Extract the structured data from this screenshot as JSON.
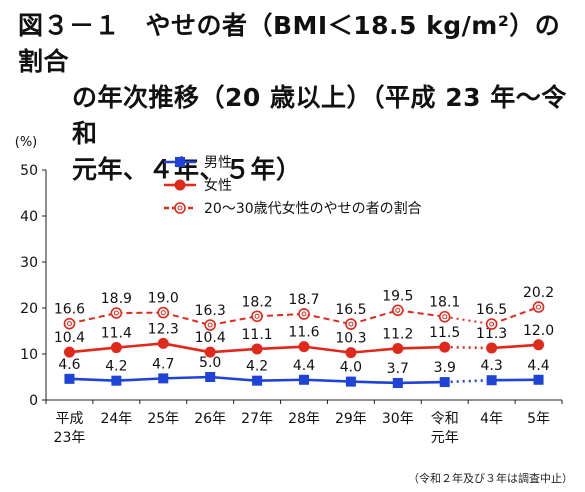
{
  "title": {
    "line1": "図３－１　やせの者（BMI＜18.5 kg/m²）の割合",
    "line2": "の年次推移（20 歳以上）（平成 23 年～令和",
    "line3": "元年、４年、５年）"
  },
  "note": "（令和２年及び３年は調査中止）",
  "chart_data": {
    "type": "line",
    "ylabel": "(%)",
    "ylim": [
      0,
      50
    ],
    "yticks": [
      0,
      10,
      20,
      30,
      40,
      50
    ],
    "categories": [
      [
        "平成",
        "23年"
      ],
      [
        "24年"
      ],
      [
        "25年"
      ],
      [
        "26年"
      ],
      [
        "27年"
      ],
      [
        "28年"
      ],
      [
        "29年"
      ],
      [
        "30年"
      ],
      [
        "令和",
        "元年"
      ],
      [
        "4年"
      ],
      [
        "5年"
      ]
    ],
    "gap_after_index": 8,
    "legend_position": "top-center",
    "series": [
      {
        "name": "男性",
        "color": "#1f43d6",
        "style": "solid-square",
        "values": [
          4.6,
          4.2,
          4.7,
          5.0,
          4.2,
          4.4,
          4.0,
          3.7,
          3.9,
          4.3,
          4.4
        ],
        "labels": [
          "4.6",
          "4.2",
          "4.7",
          "5.0",
          "4.2",
          "4.4",
          "4.0",
          "3.7",
          "3.9",
          "4.3",
          "4.4"
        ]
      },
      {
        "name": "女性",
        "color": "#e0291b",
        "style": "solid-circle",
        "values": [
          10.4,
          11.4,
          12.3,
          10.4,
          11.1,
          11.6,
          10.3,
          11.2,
          11.5,
          11.3,
          12.0
        ],
        "labels": [
          "10.4",
          "11.4",
          "12.3",
          "10.4",
          "11.1",
          "11.6",
          "10.3",
          "11.2",
          "11.5",
          "11.3",
          "12.0"
        ]
      },
      {
        "name": "20～30歳代女性のやせの者の割合",
        "color": "#e0291b",
        "style": "dashed-open-circle",
        "values": [
          16.6,
          18.9,
          19.0,
          16.3,
          18.2,
          18.7,
          16.5,
          19.5,
          18.1,
          16.5,
          20.2
        ],
        "labels": [
          "16.6",
          "18.9",
          "19.0",
          "16.3",
          "18.2",
          "18.7",
          "16.5",
          "19.5",
          "18.1",
          "16.5",
          "20.2"
        ]
      }
    ]
  }
}
